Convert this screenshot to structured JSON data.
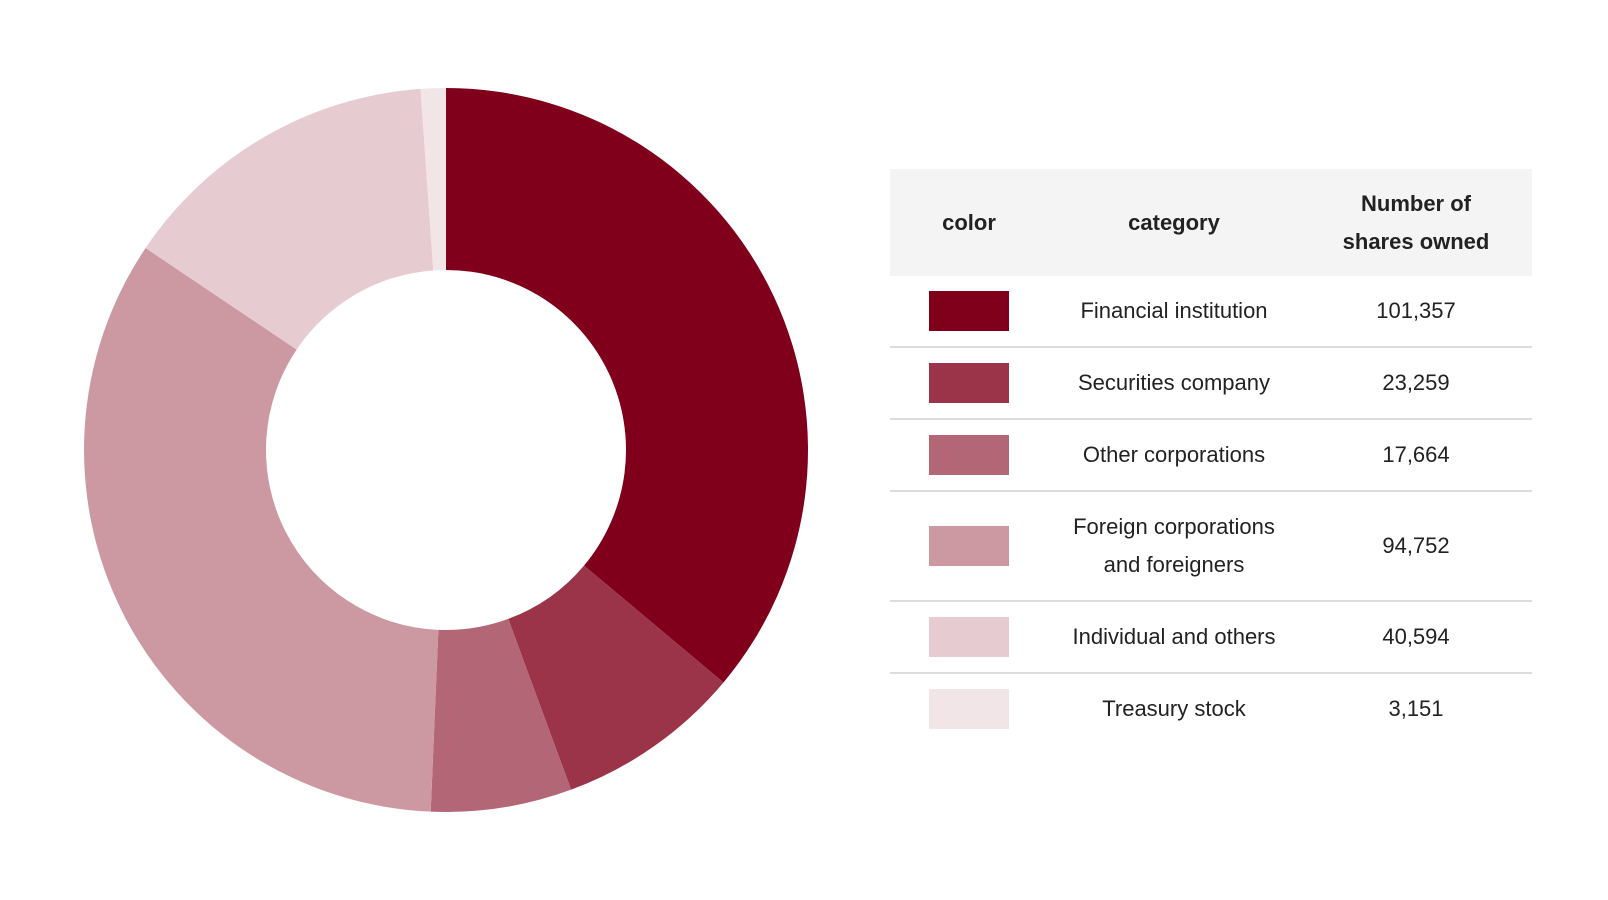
{
  "chart_data": {
    "type": "pie",
    "donut": true,
    "categories": [
      "Financial institution",
      "Securities company",
      "Other corporations",
      "Foreign corporations and foreigners",
      "Individual and others",
      "Treasury stock"
    ],
    "values": [
      101357,
      23259,
      17664,
      94752,
      40594,
      3151
    ],
    "colors": [
      "#80001b",
      "#9b3349",
      "#b36676",
      "#cc99a3",
      "#e6ccd1",
      "#f2e5e8"
    ]
  },
  "legend": {
    "headers": {
      "color": "color",
      "category": "category",
      "shares": "Number of shares owned"
    },
    "rows": [
      {
        "category": "Financial institution",
        "shares": "101,357",
        "color": "#80001b"
      },
      {
        "category": "Securities company",
        "shares": "23,259",
        "color": "#9b3349"
      },
      {
        "category": "Other corporations",
        "shares": "17,664",
        "color": "#b36676"
      },
      {
        "category": "Foreign corporations and foreigners",
        "shares": "94,752",
        "color": "#cc99a3"
      },
      {
        "category": "Individual and others",
        "shares": "40,594",
        "color": "#e6ccd1"
      },
      {
        "category": "Treasury stock",
        "shares": "3,151",
        "color": "#f2e5e8"
      }
    ]
  }
}
